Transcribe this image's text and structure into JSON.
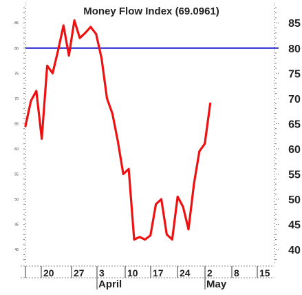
{
  "chart_data": {
    "type": "line",
    "title": "Money Flow Index (69.0961)",
    "xlabel": "",
    "ylabel": "",
    "ylim": [
      37,
      89
    ],
    "yticks": [
      40,
      45,
      50,
      55,
      60,
      65,
      70,
      75,
      80,
      85
    ],
    "reference_line": 80,
    "x_tick_labels": [
      "20",
      "27",
      "3",
      "10",
      "17",
      "24",
      "2",
      "8",
      "15"
    ],
    "months": [
      "April",
      "May"
    ],
    "series": [
      {
        "values": [
          64.5,
          69.5,
          71.5,
          62.0,
          76.5,
          75.0,
          79.5,
          84.5,
          78.5,
          85.5,
          82.0,
          83.0,
          84.2,
          82.8,
          78.0,
          70.0,
          67.0,
          61.5,
          55.0,
          56.0,
          42.0,
          42.5,
          42.0,
          42.8,
          49.0,
          50.0,
          43.0,
          42.0,
          50.5,
          48.5,
          44.0,
          53.0,
          59.5,
          61.0,
          69.0
        ]
      }
    ],
    "colors": {
      "line": "#ee1111",
      "reference": "#1a1acc",
      "grid": "#555555"
    }
  }
}
